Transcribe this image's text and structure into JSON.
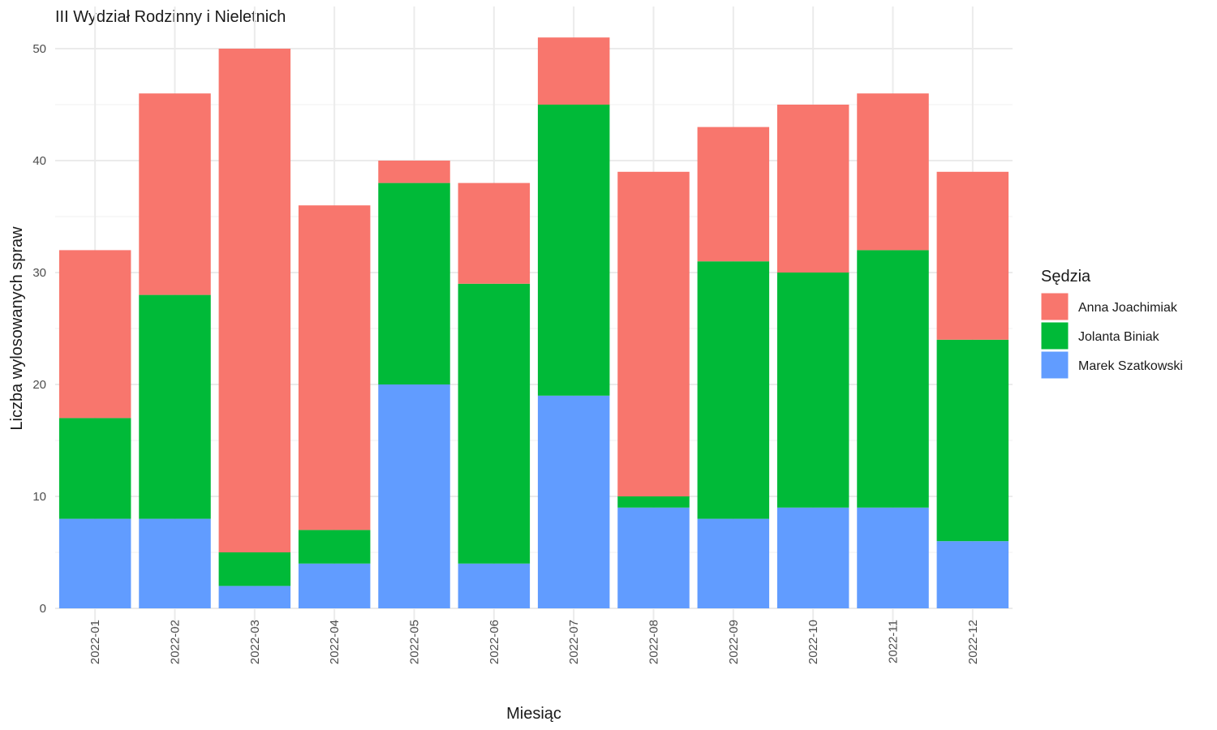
{
  "chart_data": {
    "type": "bar",
    "stacked": true,
    "title": "III Wydział Rodzinny i Nieletnich",
    "xlabel": "Miesiąc",
    "ylabel": "Liczba wylosowanych spraw",
    "ylim": [
      0,
      52
    ],
    "yticks": [
      0,
      10,
      20,
      30,
      40,
      50
    ],
    "grid": true,
    "legend": {
      "title": "Sędzia",
      "position": "right"
    },
    "categories": [
      "2022-01",
      "2022-02",
      "2022-03",
      "2022-04",
      "2022-05",
      "2022-06",
      "2022-07",
      "2022-08",
      "2022-09",
      "2022-10",
      "2022-11",
      "2022-12"
    ],
    "series": [
      {
        "name": "Marek Szatkowski",
        "color": "#619CFF",
        "values": [
          8,
          8,
          2,
          4,
          20,
          4,
          19,
          9,
          8,
          9,
          9,
          6
        ]
      },
      {
        "name": "Jolanta Biniak",
        "color": "#00BA38",
        "values": [
          9,
          20,
          3,
          3,
          18,
          25,
          26,
          1,
          23,
          21,
          23,
          18
        ]
      },
      {
        "name": "Anna Joachimiak",
        "color": "#F8766D",
        "values": [
          15,
          18,
          45,
          29,
          2,
          9,
          6,
          29,
          12,
          15,
          14,
          15
        ]
      }
    ],
    "legend_order": [
      "Anna Joachimiak",
      "Jolanta Biniak",
      "Marek Szatkowski"
    ]
  }
}
